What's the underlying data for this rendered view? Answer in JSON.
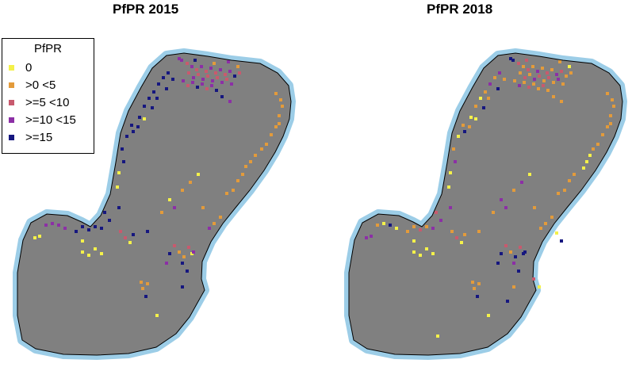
{
  "panels": [
    {
      "title": "PfPR 2015"
    },
    {
      "title": "PfPR 2018"
    }
  ],
  "legend": {
    "title": "PfPR",
    "items": [
      {
        "label": "0",
        "color": "#f4f14a"
      },
      {
        "label": ">0 <5",
        "color": "#e39b3b"
      },
      {
        "label": ">=5 <10",
        "color": "#c85a6e"
      },
      {
        "label": ">=10 <15",
        "color": "#8c2fa6"
      },
      {
        "label": ">=15",
        "color": "#16177f"
      }
    ]
  },
  "colors": {
    "land": "#808080",
    "coast_halo": "#9ccde7",
    "outline": "#000000"
  }
}
